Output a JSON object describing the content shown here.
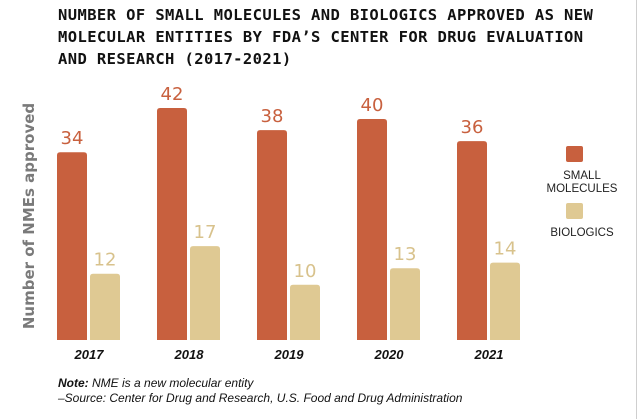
{
  "chart_data": {
    "type": "bar",
    "title": "NUMBER OF SMALL MOLECULES AND BIOLOGICS APPROVED AS NEW MOLECULAR ENTITIES BY FDA’S CENTER FOR DRUG EVALUATION AND RESEARCH (2017-2021)",
    "xlabel": "",
    "ylabel": "Number of NMEs approved",
    "ylim": [
      0,
      42
    ],
    "grid": false,
    "legend_position": "right",
    "categories": [
      "2017",
      "2018",
      "2019",
      "2020",
      "2021"
    ],
    "series": [
      {
        "name": "SMALL MOLECULES",
        "legend_lines": [
          "SMALL",
          "MOLECULES"
        ],
        "color": "#c8603e",
        "label_color": "#c8603e",
        "values": [
          34,
          42,
          38,
          40,
          36
        ]
      },
      {
        "name": "BIOLOGICS",
        "legend_lines": [
          "BIOLOGICS"
        ],
        "color": "#dfc993",
        "label_color": "#d8c28c",
        "values": [
          12,
          17,
          10,
          13,
          14
        ]
      }
    ]
  },
  "notes": {
    "note_label": "Note:",
    "note_text": " NME is a new molecular entity",
    "source": "–Source: Center for Drug and Research, U.S. Food and Drug Administration"
  }
}
